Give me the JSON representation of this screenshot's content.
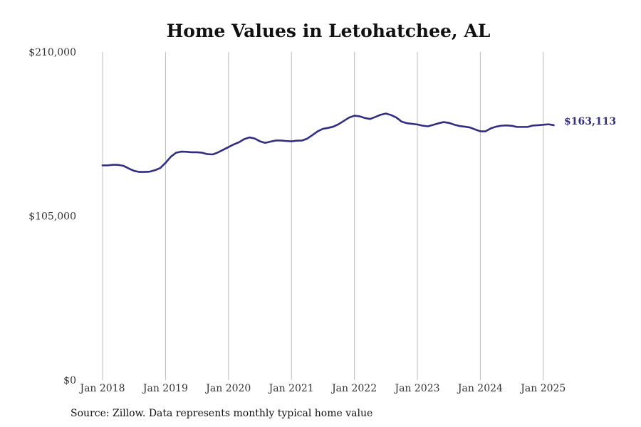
{
  "colors": {
    "series": "#312e81",
    "gridline": "#bbbbbb",
    "text": "#333333"
  },
  "source_note": "Source: Zillow. Data represents monthly typical home value",
  "chart_data": {
    "type": "line",
    "title": "Home Values in Letohatchee, AL",
    "xlabel": "",
    "ylabel": "",
    "ylim": [
      0,
      210000
    ],
    "y_ticks": [
      {
        "value": 210000,
        "label": "$210,000"
      },
      {
        "value": 105000,
        "label": "$105,000"
      },
      {
        "value": 0,
        "label": "$0"
      }
    ],
    "x_ticks": [
      {
        "value": "2018-01",
        "label": "Jan 2018"
      },
      {
        "value": "2019-01",
        "label": "Jan 2019"
      },
      {
        "value": "2020-01",
        "label": "Jan 2020"
      },
      {
        "value": "2021-01",
        "label": "Jan 2021"
      },
      {
        "value": "2022-01",
        "label": "Jan 2022"
      },
      {
        "value": "2023-01",
        "label": "Jan 2023"
      },
      {
        "value": "2024-01",
        "label": "Jan 2024"
      },
      {
        "value": "2025-01",
        "label": "Jan 2025"
      }
    ],
    "grid": "vertical",
    "end_label": "$163,113",
    "series": [
      {
        "x": [
          "2018-01",
          "2018-02",
          "2018-03",
          "2018-04",
          "2018-05",
          "2018-06",
          "2018-07",
          "2018-08",
          "2018-09",
          "2018-10",
          "2018-11",
          "2018-12",
          "2019-01",
          "2019-02",
          "2019-03",
          "2019-04",
          "2019-05",
          "2019-06",
          "2019-07",
          "2019-08",
          "2019-09",
          "2019-10",
          "2019-11",
          "2019-12",
          "2020-01",
          "2020-02",
          "2020-03",
          "2020-04",
          "2020-05",
          "2020-06",
          "2020-07",
          "2020-08",
          "2020-09",
          "2020-10",
          "2020-11",
          "2020-12",
          "2021-01",
          "2021-02",
          "2021-03",
          "2021-04",
          "2021-05",
          "2021-06",
          "2021-07",
          "2021-08",
          "2021-09",
          "2021-10",
          "2021-11",
          "2021-12",
          "2022-01",
          "2022-02",
          "2022-03",
          "2022-04",
          "2022-05",
          "2022-06",
          "2022-07",
          "2022-08",
          "2022-09",
          "2022-10",
          "2022-11",
          "2022-12",
          "2023-01",
          "2023-02",
          "2023-03",
          "2023-04",
          "2023-05",
          "2023-06",
          "2023-07",
          "2023-08",
          "2023-09",
          "2023-10",
          "2023-11",
          "2023-12",
          "2024-01",
          "2024-02",
          "2024-03",
          "2024-04",
          "2024-05",
          "2024-06",
          "2024-07",
          "2024-08",
          "2024-09",
          "2024-10",
          "2024-11",
          "2024-12",
          "2025-01",
          "2025-02",
          "2025-03"
        ],
        "values": [
          137400,
          137400,
          137800,
          137700,
          137100,
          135400,
          133900,
          133200,
          133200,
          133400,
          134300,
          135700,
          139000,
          142900,
          145500,
          146200,
          146100,
          145800,
          145800,
          145500,
          144600,
          144400,
          145700,
          147400,
          149100,
          150800,
          152200,
          154200,
          155300,
          154600,
          152800,
          151800,
          152600,
          153300,
          153300,
          153000,
          152800,
          153200,
          153300,
          154500,
          156800,
          159200,
          160800,
          161400,
          162200,
          163800,
          165900,
          168000,
          169200,
          168800,
          167700,
          167100,
          168400,
          169800,
          170600,
          169600,
          168000,
          165400,
          164400,
          164000,
          163600,
          162800,
          162400,
          163300,
          164300,
          165100,
          164600,
          163500,
          162600,
          162200,
          161700,
          160400,
          159200,
          159200,
          161100,
          162200,
          162800,
          163000,
          162700,
          162000,
          162000,
          162000,
          162900,
          163100,
          163400,
          163700,
          163113
        ]
      }
    ]
  }
}
